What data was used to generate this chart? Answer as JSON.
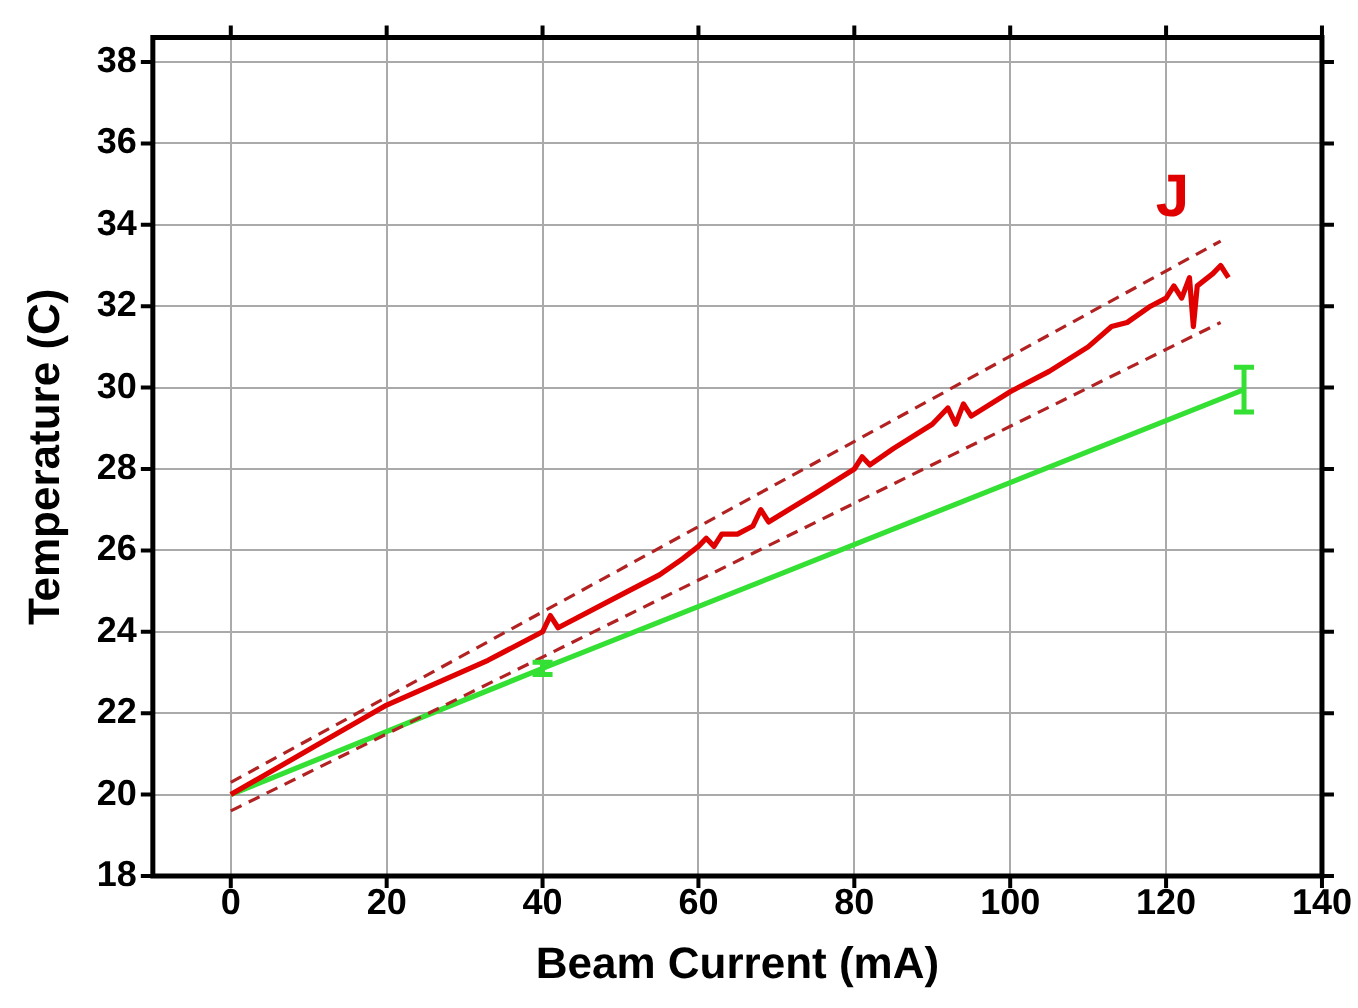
{
  "chart_data": {
    "type": "line",
    "xlabel": "Beam Current (mA)",
    "ylabel": "Temperature (C)",
    "xlim": [
      -10,
      140
    ],
    "xticks": [
      0,
      20,
      40,
      60,
      80,
      100,
      120,
      140
    ],
    "ylim": [
      18,
      38.6
    ],
    "yticks": [
      18,
      20,
      22,
      24,
      26,
      28,
      30,
      32,
      34,
      36,
      38
    ],
    "grid": true,
    "legend": false,
    "marker": "none",
    "series": [
      {
        "name": "J",
        "color": "#e00000",
        "line_style": "solid",
        "x": [
          0,
          10,
          20,
          33,
          35,
          40,
          41,
          42,
          50,
          55,
          58,
          60,
          61,
          62,
          63,
          65,
          67,
          68,
          69,
          75,
          80,
          81,
          82,
          85,
          90,
          92,
          93,
          94,
          95,
          100,
          105,
          110,
          113,
          115,
          118,
          120,
          121,
          122,
          123,
          123.5,
          124,
          126,
          127,
          128
        ],
        "values": [
          20,
          21.1,
          22.2,
          23.3,
          23.5,
          24,
          24.4,
          24.1,
          24.9,
          25.4,
          25.8,
          26.1,
          26.3,
          26.1,
          26.4,
          26.4,
          26.6,
          27,
          26.7,
          27.4,
          28,
          28.3,
          28.1,
          28.5,
          29.1,
          29.5,
          29.1,
          29.6,
          29.3,
          29.9,
          30.4,
          31,
          31.5,
          31.6,
          32,
          32.2,
          32.5,
          32.2,
          32.7,
          31.5,
          32.5,
          32.8,
          33,
          32.7
        ]
      },
      {
        "color": "#b22222",
        "line_style": "dashed",
        "x": [
          0,
          127
        ],
        "values": [
          20.3,
          33.6
        ]
      },
      {
        "color": "#b22222",
        "line_style": "dashed",
        "x": [
          0,
          127
        ],
        "values": [
          19.6,
          31.6
        ]
      },
      {
        "color": "#33e033",
        "line_style": "solid",
        "x": [
          0,
          40,
          130
        ],
        "values": [
          20,
          23.1,
          29.95
        ],
        "errors": [
          null,
          0.15,
          0.55
        ]
      }
    ]
  }
}
